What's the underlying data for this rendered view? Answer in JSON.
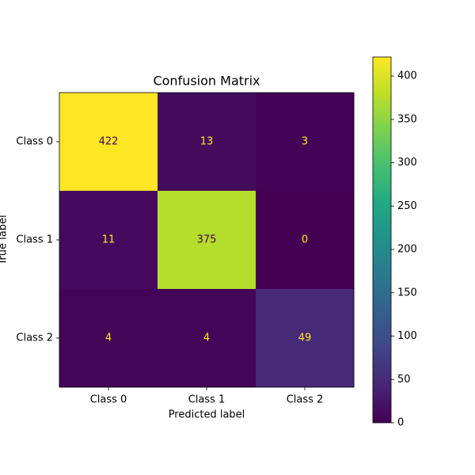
{
  "chart_data": {
    "type": "heatmap",
    "title": "Confusion Matrix",
    "x_label": "Predicted label",
    "y_label": "True label",
    "x_categories": [
      "Class 0",
      "Class 1",
      "Class 2"
    ],
    "y_categories": [
      "Class 0",
      "Class 1",
      "Class 2"
    ],
    "values": [
      [
        422,
        13,
        3
      ],
      [
        11,
        375,
        0
      ],
      [
        4,
        4,
        49
      ]
    ],
    "colormap": "viridis",
    "clim": [
      0,
      422
    ],
    "colorbar_ticks": [
      0,
      50,
      100,
      150,
      200,
      250,
      300,
      350,
      400
    ]
  }
}
